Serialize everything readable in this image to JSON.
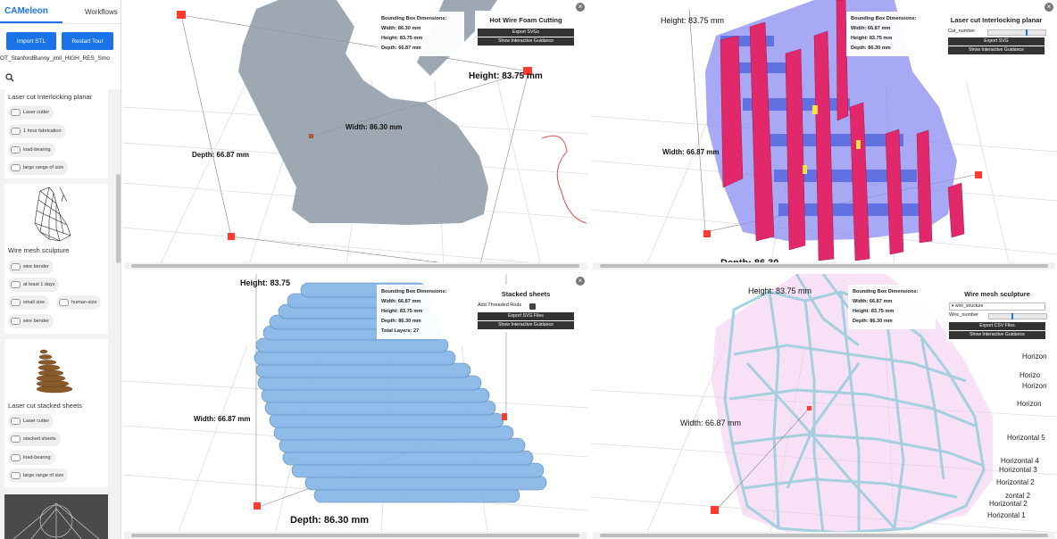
{
  "sidebar": {
    "brand": "CAMeleon",
    "workflows_tab": "Workflows",
    "import_button": "Import STL",
    "restart_button": "Restart Tour",
    "file_name": "OT_StanfordBunny_jmil_HIGH_RES_Smo",
    "cards": [
      {
        "title": "Laser cut Interlocking planar",
        "chips": [
          "Laser cutter",
          "1 hour fabrication",
          "load-bearing",
          "large range of size"
        ]
      },
      {
        "title": "Wire mesh sculpture",
        "chips": [
          "wire bender",
          "at least 1 days",
          "small size",
          "human-size",
          "wire bender"
        ]
      },
      {
        "title": "Laser cut stacked sheets",
        "chips": [
          "Laser cutter",
          "stacked sheets",
          "load-bearing",
          "large range of size"
        ]
      }
    ]
  },
  "viewports": {
    "hot_wire": {
      "dims": {
        "heading": "Bounding Box Dimensions:",
        "width": "Width: 86.30 mm",
        "height": "Height: 83.75 mm",
        "depth": "Depth: 66.87 mm"
      },
      "panel": {
        "title": "Hot Wire Foam Cutting",
        "btn1": "Export SVGs",
        "btn2": "Show Interactive Guidance"
      },
      "labels": {
        "height": "Height: 83.75 mm",
        "width": "Width: 86.30 mm",
        "depth": "Depth: 66.87 mm"
      }
    },
    "interlocking": {
      "dims": {
        "heading": "Bounding Box Dimensions:",
        "width": "Width: 66.87 mm",
        "height": "Height: 83.75 mm",
        "depth": "Depth: 86.30 mm"
      },
      "panel": {
        "title": "Laser cut Interlocking planar",
        "slider_label": "Cut_number",
        "btn1": "Export SVG",
        "btn2": "Show Interactive Guidance"
      },
      "labels": {
        "height": "Height: 83.75 mm",
        "width": "Width: 66.87 mm",
        "depth": "Depth: 86.30"
      }
    },
    "stacked": {
      "dims": {
        "heading": "Bounding Box Dimensions:",
        "width": "Width: 66.87 mm",
        "height": "Height: 83.75 mm",
        "depth": "Depth: 86.30 mm",
        "layers": "Total Layers: 27"
      },
      "panel": {
        "title": "Stacked sheets",
        "checkbox_label": "Add Threaded Rods",
        "btn1": "Export SVG Files",
        "btn2": "Show Interactive Guidance"
      },
      "labels": {
        "height": "Height: 83.75",
        "width": "Width: 66.87 mm",
        "depth": "Depth: 86.30 mm"
      }
    },
    "wire_mesh": {
      "dims": {
        "heading": "Bounding Box Dimensions:",
        "width": "Width: 66.87 mm",
        "height": "Height: 83.75 mm",
        "depth": "Depth: 86.30 mm"
      },
      "panel": {
        "title": "Wire mesh sculpture",
        "dropdown": "wire_structure",
        "slider_label": "Wire_number",
        "btn1": "Export CSV Files",
        "btn2": "Show Interactive Guidance"
      },
      "labels": {
        "height": "Height: 83.75 mm",
        "width": "Width: 66.87 mm"
      },
      "horizontal_labels": [
        "Horizon",
        "Horizo",
        "Horizon",
        "Horizon",
        "Horizontal 5",
        "Horizontal 4",
        "Horizontal 3",
        "Horizontal 2",
        "zontal 2",
        "Horizontal 2",
        "Horizontal 1"
      ]
    }
  },
  "colors": {
    "accent": "#1a73e8",
    "marker": "#ff3b30",
    "interlock_pink": "#e0286a",
    "stacked_blue": "#8ab8e8"
  }
}
